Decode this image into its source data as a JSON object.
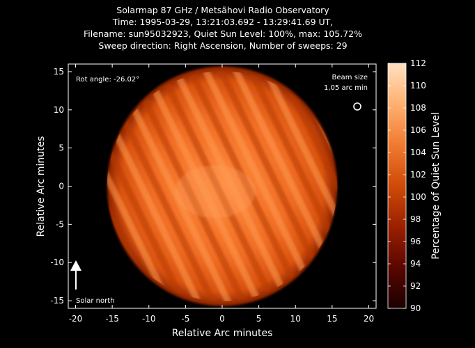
{
  "chart_data": {
    "type": "heatmap",
    "title_lines": [
      "Solarmap 87 GHz / Metsähovi Radio Observatory",
      "Time: 1995-03-29, 13:21:03.692 - 13:29:41.69 UT,",
      "Filename: sun95032923, Quiet Sun Level: 100%, max: 105.72%",
      "Sweep direction: Right Ascension, Number of sweeps: 29"
    ],
    "xlabel": "Relative Arc minutes",
    "ylabel": "Relative Arc minutes",
    "xlim": [
      -21,
      21
    ],
    "ylim": [
      -16,
      16
    ],
    "xticks": [
      -20,
      -15,
      -10,
      -5,
      0,
      5,
      10,
      15,
      20
    ],
    "yticks": [
      -15,
      -10,
      -5,
      0,
      5,
      10,
      15
    ],
    "colorbar": {
      "label": "Percentage of Quiet Sun Level",
      "range": [
        90,
        112
      ],
      "ticks": [
        90,
        92,
        94,
        96,
        98,
        100,
        102,
        104,
        106,
        108,
        110,
        112
      ],
      "colors": [
        "#1a0000",
        "#5a0600",
        "#9a2000",
        "#d04a08",
        "#f07a30",
        "#ffb070",
        "#ffe0c0"
      ]
    },
    "annotations": {
      "rot_angle": "Rot angle: -26.02°",
      "beam_size_line1": "Beam size",
      "beam_size_line2": "1,05 arc min",
      "solar_north": "Solar north"
    },
    "disk": {
      "center": [
        0,
        0
      ],
      "radius_arcmin": 15.7,
      "num_sweeps": 29,
      "max_percent": 105.72
    }
  }
}
